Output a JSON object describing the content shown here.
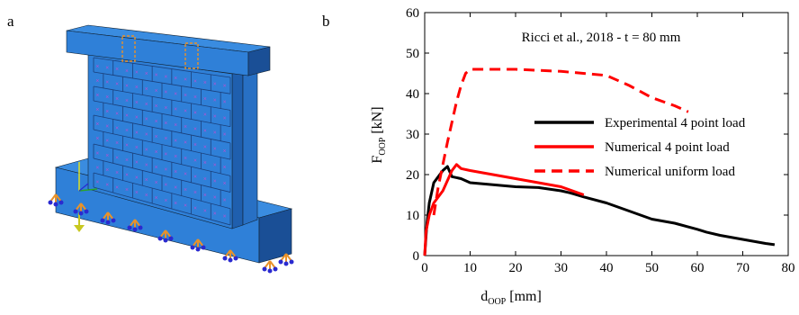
{
  "panel_a": {
    "label": "a",
    "colors": {
      "wall": "#2f80d8",
      "wall_dark": "#1f5fae",
      "wall_side": "#1a4f96",
      "mortar": "#1a3f7a",
      "load": "#e63fd0",
      "support": "#e8922a",
      "support_ball": "#2a2ad0",
      "axis_y": "#e0e020",
      "axis_x": "#2aa32a"
    },
    "icons": [
      "fe-model-masonry-wall",
      "boundary-condition-icon",
      "load-arrow-icon",
      "coordinate-triad-icon"
    ]
  },
  "panel_b": {
    "label": "b"
  },
  "chart_data": {
    "type": "line",
    "title": "Ricci et al., 2018 - t = 80 mm",
    "xlabel": "d",
    "xlabel_sub": "OOP",
    "xlabel_unit": " [mm]",
    "ylabel": "F",
    "ylabel_sub": "OOP",
    "ylabel_unit": " [kN]",
    "xlim": [
      0,
      80
    ],
    "ylim": [
      0,
      60
    ],
    "xticks": [
      0,
      10,
      20,
      30,
      40,
      50,
      60,
      70,
      80
    ],
    "yticks": [
      0,
      10,
      20,
      30,
      40,
      50,
      60
    ],
    "grid": false,
    "legend_position": "center-right",
    "series": [
      {
        "name": "Experimental 4 point load",
        "color": "#000000",
        "style": "solid",
        "x": [
          0,
          0.5,
          1,
          2,
          3,
          4,
          5,
          6,
          8,
          10,
          15,
          20,
          25,
          30,
          32,
          35,
          40,
          45,
          50,
          55,
          60,
          62,
          65,
          70,
          75,
          77
        ],
        "y": [
          0,
          8,
          13,
          18,
          19.5,
          21,
          22,
          19.5,
          19,
          18,
          17.5,
          17,
          16.8,
          16,
          15.5,
          14.5,
          13,
          11,
          9,
          8,
          6.5,
          5.8,
          5,
          4,
          3,
          2.7
        ]
      },
      {
        "name": "Numerical 4 point load",
        "color": "#ff0000",
        "style": "solid",
        "x": [
          0,
          0.3,
          1,
          2,
          4,
          6,
          7,
          8,
          10,
          15,
          20,
          25,
          30,
          35
        ],
        "y": [
          0,
          6,
          10,
          13,
          16,
          21,
          22.5,
          21.5,
          21,
          20,
          19,
          18,
          17,
          15
        ]
      },
      {
        "name": "Numerical uniform load",
        "color": "#ff0000",
        "style": "dashed",
        "x": [
          2,
          3,
          5,
          7,
          8,
          9,
          10,
          12,
          20,
          30,
          40,
          45,
          50,
          55,
          58
        ],
        "y": [
          10,
          17,
          28,
          38,
          42,
          45,
          46,
          46,
          46,
          45.5,
          44.5,
          42,
          39,
          37,
          35.5
        ]
      }
    ]
  }
}
